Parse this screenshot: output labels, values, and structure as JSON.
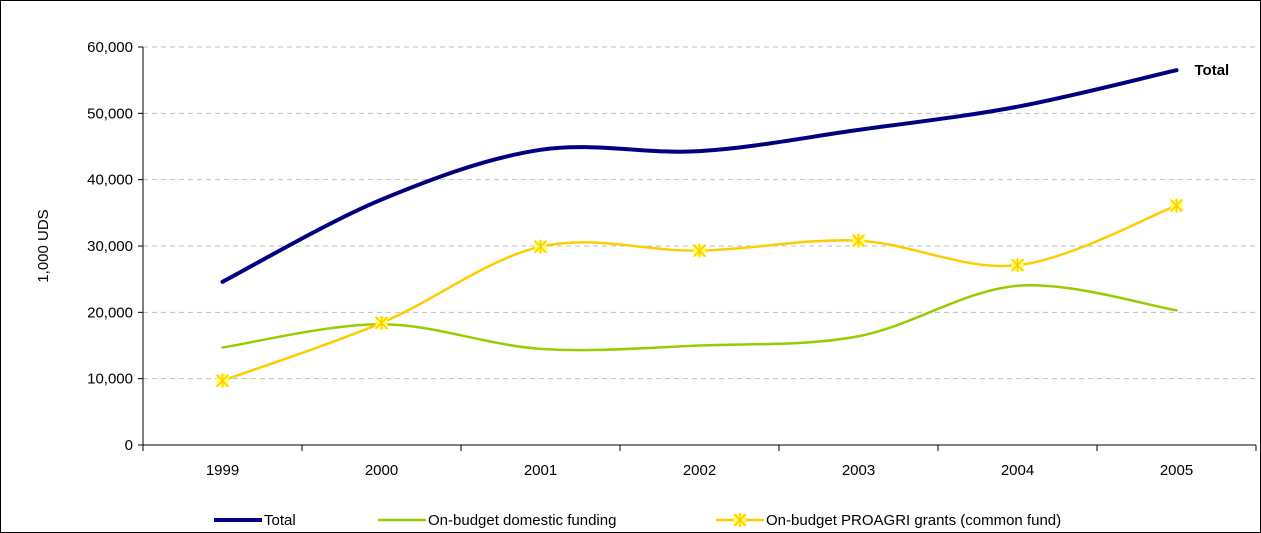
{
  "chart_data": {
    "type": "line",
    "title": "",
    "xlabel": "",
    "ylabel": "1,000 UDS",
    "ylim": [
      0,
      60000
    ],
    "yticks": [
      "0",
      "10,000",
      "20,000",
      "30,000",
      "40,000",
      "50,000",
      "60,000"
    ],
    "categories": [
      "1999",
      "2000",
      "2001",
      "2002",
      "2003",
      "2004",
      "2005"
    ],
    "grid": "horizontal dashed",
    "legend_position": "bottom",
    "series": [
      {
        "name": "Total",
        "values": [
          24600,
          37000,
          44500,
          44300,
          47500,
          51000,
          56500
        ],
        "color": "#000080",
        "end_label": "Total",
        "marker": "none"
      },
      {
        "name": "On-budget domestic funding",
        "values": [
          14700,
          18200,
          14500,
          15000,
          16400,
          24000,
          20300
        ],
        "color": "#99cc00",
        "marker": "none"
      },
      {
        "name": "On-budget PROAGRI grants (common fund)",
        "values": [
          9700,
          18400,
          29900,
          29300,
          30800,
          27100,
          36100
        ],
        "color": "#ffcc00",
        "marker": "asterisk"
      }
    ]
  }
}
